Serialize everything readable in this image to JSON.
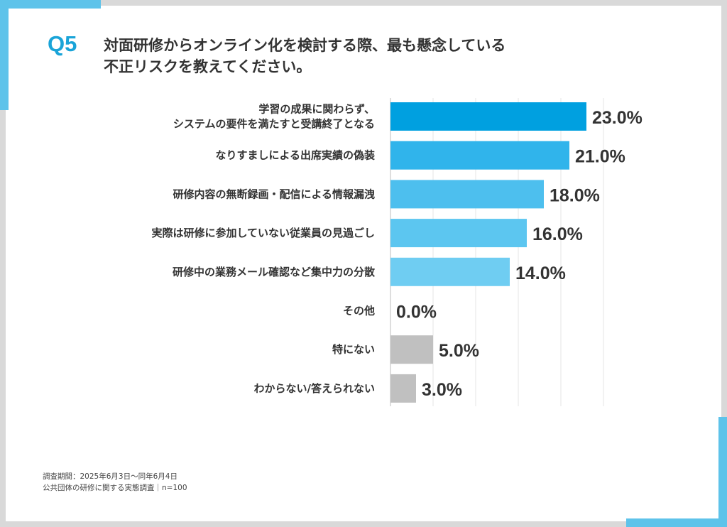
{
  "header": {
    "q_label": "Q5",
    "title_line1": "対面研修からオンライン化を検討する際、最も懸念している",
    "title_line2": "不正リスクを教えてください。"
  },
  "chart_data": {
    "type": "bar",
    "orientation": "horizontal",
    "categories": [
      [
        "学習の成果に関わらず、",
        "システムの要件を満たすと受講終了となる"
      ],
      [
        "なりすましによる出席実績の偽装"
      ],
      [
        "研修内容の無断録画・配信による情報漏洩"
      ],
      [
        "実際は研修に参加していない従業員の見過ごし"
      ],
      [
        "研修中の業務メール確認など集中力の分散"
      ],
      [
        "その他"
      ],
      [
        "特にない"
      ],
      [
        "わからない/答えられない"
      ]
    ],
    "values": [
      23.0,
      21.0,
      18.0,
      16.0,
      14.0,
      0.0,
      5.0,
      3.0
    ],
    "value_labels": [
      "23.0%",
      "21.0%",
      "18.0%",
      "16.0%",
      "14.0%",
      "0.0%",
      "5.0%",
      "3.0%"
    ],
    "colors": [
      "#00a0e0",
      "#30b4eb",
      "#4dbfee",
      "#5cc6f0",
      "#6fcdf2",
      "#6fcdf2",
      "#c0c0c0",
      "#c0c0c0"
    ],
    "xlim": [
      0,
      25
    ],
    "grid": true,
    "legend": "none"
  },
  "footnote": {
    "line1": "調査期間：2025年6月3日～同年6月4日",
    "line2": "公共団体の研修に関する実態調査｜n=100"
  }
}
